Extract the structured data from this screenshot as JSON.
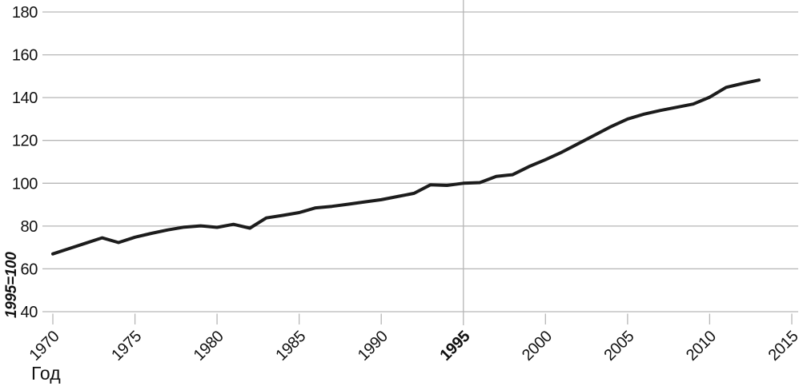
{
  "page": {
    "background": "#ffffff"
  },
  "style": {
    "line_color": "#1c1c1c",
    "grid_color": "#b6b6b6",
    "text_color": "#111111",
    "line_width": 4,
    "grid_width": 1.3
  },
  "chart_data": {
    "type": "line",
    "title": "",
    "xlabel": "Год",
    "ylabel": "1995=100",
    "legend": "none",
    "grid": "horizontal gridlines at every y tick; single vertical reference line at 1995",
    "ylim": [
      40,
      180
    ],
    "xlim": [
      1970,
      2015
    ],
    "yticks": [
      180,
      160,
      140,
      120,
      100,
      80,
      60,
      40
    ],
    "xticks": [
      1970,
      1975,
      1980,
      1985,
      1990,
      1995,
      2000,
      2005,
      2010,
      2015
    ],
    "emphasized_xtick": 1995,
    "reference_line_x": 1995,
    "x": [
      1970,
      1971,
      1972,
      1973,
      1974,
      1975,
      1976,
      1977,
      1978,
      1979,
      1980,
      1981,
      1982,
      1983,
      1984,
      1985,
      1986,
      1987,
      1988,
      1989,
      1990,
      1991,
      1992,
      1993,
      1994,
      1995,
      1996,
      1997,
      1998,
      1999,
      2000,
      2001,
      2002,
      2003,
      2004,
      2005,
      2006,
      2007,
      2008,
      2009,
      2010,
      2011,
      2012,
      2013
    ],
    "values": [
      67.0,
      69.5,
      72.0,
      74.5,
      72.3,
      74.8,
      76.6,
      78.2,
      79.5,
      80.1,
      79.4,
      80.8,
      79.0,
      83.8,
      85.0,
      86.3,
      88.5,
      89.2,
      90.2,
      91.3,
      92.3,
      93.8,
      95.3,
      99.3,
      99.0,
      100.0,
      100.3,
      103.2,
      104.0,
      107.8,
      111.0,
      114.5,
      118.5,
      122.5,
      126.5,
      130.0,
      132.3,
      134.0,
      135.5,
      137.0,
      140.2,
      144.8,
      146.6,
      148.2
    ]
  }
}
